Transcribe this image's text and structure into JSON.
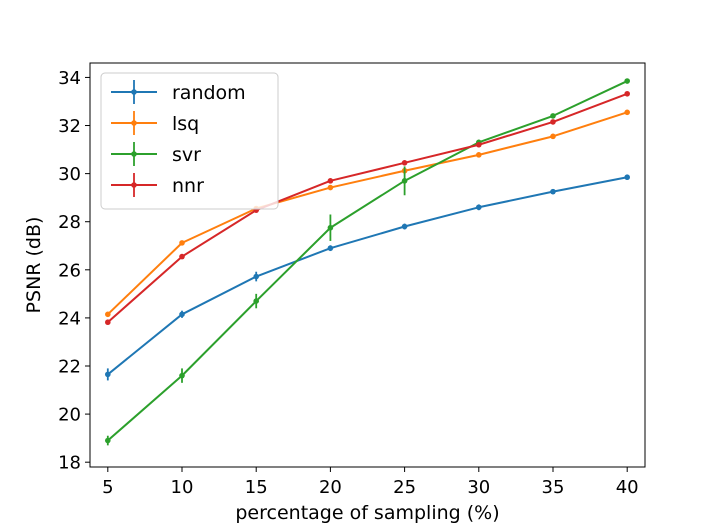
{
  "chart_data": {
    "type": "line",
    "title": "",
    "xlabel": "percentage of sampling (%)",
    "ylabel": "PSNR (dB)",
    "x": [
      5,
      10,
      15,
      20,
      25,
      30,
      35,
      40
    ],
    "xlim": [
      3.8,
      41.2
    ],
    "ylim": [
      17.8,
      34.6
    ],
    "xticks": [
      5,
      10,
      15,
      20,
      25,
      30,
      35,
      40
    ],
    "yticks": [
      18,
      20,
      22,
      24,
      26,
      28,
      30,
      32,
      34
    ],
    "legend_position": "upper-left",
    "series": [
      {
        "name": "random",
        "color": "#1f77b4",
        "x": [
          5,
          10,
          15,
          20,
          25,
          30,
          35,
          40
        ],
        "values": [
          21.65,
          24.15,
          25.72,
          26.9,
          27.8,
          28.6,
          29.25,
          29.85
        ],
        "errors": [
          0.25,
          0.15,
          0.2,
          0.12,
          0.12,
          0.12,
          0.1,
          0.1
        ]
      },
      {
        "name": "lsq",
        "color": "#ff7f0e",
        "x": [
          5,
          10,
          15,
          20,
          25,
          30,
          35,
          40
        ],
        "values": [
          24.15,
          27.12,
          28.55,
          29.42,
          30.12,
          30.78,
          31.55,
          32.55
        ],
        "errors": [
          0.05,
          0.05,
          0.05,
          0.05,
          0.05,
          0.05,
          0.05,
          0.05
        ]
      },
      {
        "name": "svr",
        "color": "#2ca02c",
        "x": [
          5,
          10,
          15,
          20,
          25,
          30,
          35,
          40
        ],
        "values": [
          18.9,
          21.6,
          24.7,
          27.75,
          29.7,
          31.3,
          32.4,
          33.85
        ],
        "errors": [
          0.2,
          0.3,
          0.3,
          0.55,
          0.6,
          0.1,
          0.05,
          0.05
        ]
      },
      {
        "name": "nnr",
        "color": "#d62728",
        "x": [
          5,
          10,
          15,
          20,
          25,
          30,
          35,
          40
        ],
        "values": [
          23.82,
          26.55,
          28.48,
          29.7,
          30.45,
          31.2,
          32.15,
          33.32
        ],
        "errors": [
          0.05,
          0.05,
          0.05,
          0.05,
          0.05,
          0.05,
          0.05,
          0.05
        ]
      }
    ]
  }
}
